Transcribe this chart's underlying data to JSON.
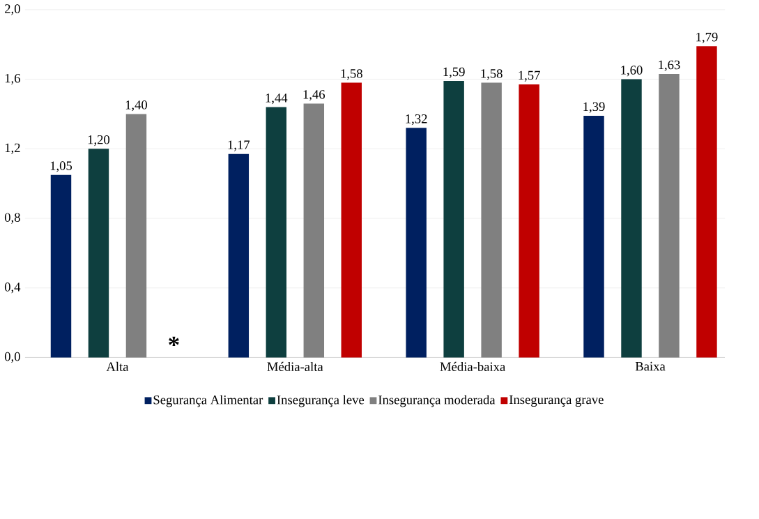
{
  "chart_data": {
    "type": "bar",
    "categories": [
      "Alta",
      "Média-alta",
      "Média-baixa",
      "Baixa"
    ],
    "series": [
      {
        "name": "Segurança Alimentar",
        "color": "#002060",
        "values": [
          1.05,
          1.17,
          1.32,
          1.39
        ],
        "value_labels": [
          "1,05",
          "1,17",
          "1,32",
          "1,39"
        ]
      },
      {
        "name": "Insegurança leve",
        "color": "#0e3f3f",
        "values": [
          1.2,
          1.44,
          1.59,
          1.6
        ],
        "value_labels": [
          "1,20",
          "1,44",
          "1,59",
          "1,60"
        ]
      },
      {
        "name": "Insegurança moderada",
        "color": "#808080",
        "values": [
          1.4,
          1.46,
          1.58,
          1.63
        ],
        "value_labels": [
          "1,40",
          "1,46",
          "1,58",
          "1,63"
        ]
      },
      {
        "name": "Insegurança grave",
        "color": "#c00000",
        "values": [
          null,
          1.58,
          1.57,
          1.79
        ],
        "value_labels": [
          null,
          "1,58",
          "1,57",
          "1,79"
        ]
      }
    ],
    "ylim": [
      0,
      2
    ],
    "yticks": [
      {
        "value": 0,
        "label": "0,0"
      },
      {
        "value": 0.4,
        "label": "0,4"
      },
      {
        "value": 0.8,
        "label": "0,8"
      },
      {
        "value": 1.2,
        "label": "1,2"
      },
      {
        "value": 1.6,
        "label": "1,6"
      },
      {
        "value": 2,
        "label": "2,0"
      }
    ],
    "grid": "y",
    "legend": "bottom",
    "annotations": [
      "*"
    ]
  }
}
